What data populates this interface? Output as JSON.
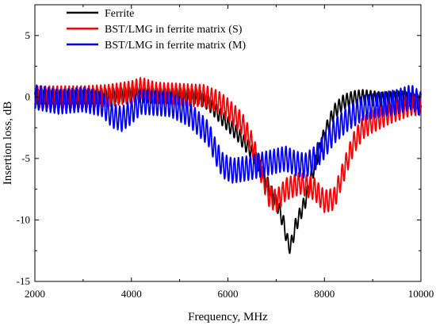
{
  "chart_data": {
    "type": "line",
    "title": "",
    "xlabel": "Frequency, MHz",
    "ylabel": "Insertion loss, dB",
    "xlim": [
      2000,
      10000
    ],
    "ylim": [
      -15,
      7.5
    ],
    "xticks": [
      2000,
      4000,
      6000,
      8000,
      10000
    ],
    "yticks": [
      -15,
      -10,
      -5,
      0,
      5
    ],
    "grid": false,
    "legend_position": "top-left",
    "series": [
      {
        "name": "Ferrite",
        "color": "#000000",
        "ripple": 0.6,
        "points": [
          [
            2000,
            0.0
          ],
          [
            2500,
            0.0
          ],
          [
            3000,
            0.0
          ],
          [
            3500,
            0.1
          ],
          [
            4000,
            0.2
          ],
          [
            4500,
            0.1
          ],
          [
            5000,
            0.1
          ],
          [
            5400,
            0.0
          ],
          [
            5600,
            -0.5
          ],
          [
            5900,
            -1.8
          ],
          [
            6200,
            -3.0
          ],
          [
            6500,
            -4.5
          ],
          [
            6700,
            -6.0
          ],
          [
            6900,
            -7.8
          ],
          [
            7050,
            -9.0
          ],
          [
            7150,
            -10.2
          ],
          [
            7250,
            -12.0
          ],
          [
            7300,
            -12.2
          ],
          [
            7400,
            -10.5
          ],
          [
            7600,
            -8.5
          ],
          [
            7800,
            -5.5
          ],
          [
            8000,
            -3.0
          ],
          [
            8200,
            -1.2
          ],
          [
            8400,
            -0.4
          ],
          [
            8600,
            -0.1
          ],
          [
            8800,
            0.0
          ],
          [
            9200,
            -0.2
          ],
          [
            9600,
            -0.1
          ],
          [
            10000,
            -0.5
          ]
        ]
      },
      {
        "name": "BST/LMG in ferrite matrix (S)",
        "color": "#ff0000",
        "ripple": 0.9,
        "points": [
          [
            2000,
            0.0
          ],
          [
            2500,
            0.0
          ],
          [
            3000,
            0.0
          ],
          [
            3500,
            0.1
          ],
          [
            4000,
            0.4
          ],
          [
            4200,
            0.7
          ],
          [
            4500,
            0.3
          ],
          [
            5000,
            0.2
          ],
          [
            5500,
            0.1
          ],
          [
            5800,
            -0.4
          ],
          [
            6000,
            -1.0
          ],
          [
            6300,
            -2.2
          ],
          [
            6500,
            -3.8
          ],
          [
            6700,
            -6.2
          ],
          [
            6850,
            -8.0
          ],
          [
            7000,
            -8.5
          ],
          [
            7200,
            -7.5
          ],
          [
            7500,
            -7.0
          ],
          [
            7800,
            -7.5
          ],
          [
            8000,
            -8.5
          ],
          [
            8200,
            -8.3
          ],
          [
            8400,
            -6.0
          ],
          [
            8600,
            -3.8
          ],
          [
            8800,
            -2.5
          ],
          [
            9000,
            -2.0
          ],
          [
            9400,
            -1.2
          ],
          [
            9800,
            -0.6
          ],
          [
            10000,
            -0.6
          ]
        ]
      },
      {
        "name": "BST/LMG in ferrite matrix (M)",
        "color": "#0000ff",
        "ripple": 1.0,
        "points": [
          [
            2000,
            0.0
          ],
          [
            2500,
            -0.4
          ],
          [
            3000,
            -0.2
          ],
          [
            3400,
            -0.6
          ],
          [
            3600,
            -1.5
          ],
          [
            3800,
            -1.8
          ],
          [
            4000,
            -1.2
          ],
          [
            4200,
            -0.4
          ],
          [
            4500,
            -0.5
          ],
          [
            4800,
            -0.6
          ],
          [
            5000,
            -1.0
          ],
          [
            5200,
            -1.4
          ],
          [
            5400,
            -2.2
          ],
          [
            5600,
            -3.0
          ],
          [
            5750,
            -4.5
          ],
          [
            5900,
            -5.6
          ],
          [
            6100,
            -6.0
          ],
          [
            6400,
            -5.8
          ],
          [
            6700,
            -5.5
          ],
          [
            7000,
            -5.2
          ],
          [
            7200,
            -5.0
          ],
          [
            7400,
            -5.4
          ],
          [
            7600,
            -5.6
          ],
          [
            7800,
            -5.0
          ],
          [
            8000,
            -4.0
          ],
          [
            8200,
            -2.8
          ],
          [
            8500,
            -1.7
          ],
          [
            8800,
            -0.9
          ],
          [
            9200,
            -0.6
          ],
          [
            9500,
            -0.4
          ],
          [
            9800,
            0.0
          ],
          [
            10000,
            -0.6
          ]
        ]
      }
    ]
  }
}
